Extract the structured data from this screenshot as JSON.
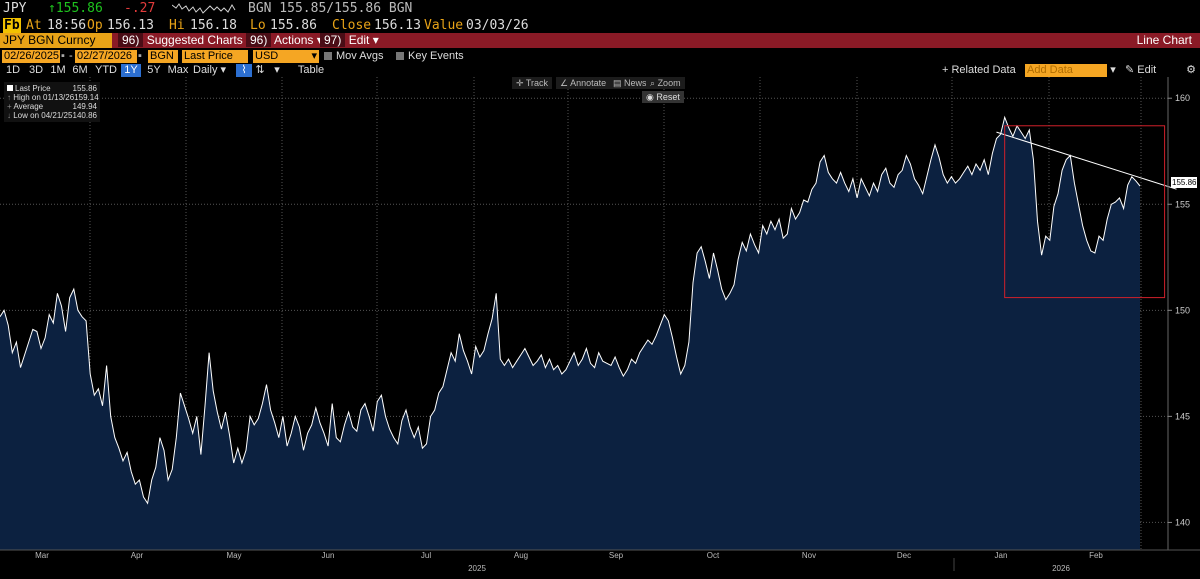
{
  "quote": {
    "ticker": "JPY",
    "last": "↑155.86",
    "change": "-.27",
    "bid_ask": "BGN 155.85/155.86 BGN",
    "fkey": "Fb",
    "at_label": "At",
    "at_time": "18:56",
    "op_label": "Op",
    "op": "156.13",
    "hi_label": "Hi",
    "hi": "156.18",
    "lo_label": "Lo",
    "lo": "155.86",
    "close_label": "Close",
    "close": "156.13",
    "value_label": "Value",
    "value": "03/03/26"
  },
  "menubar": {
    "security": "JPY BGN Curncy",
    "suggested_num": "96)",
    "suggested": "Suggested Charts",
    "actions_num": "96)",
    "actions": "Actions",
    "edit_num": "97)",
    "edit": "Edit",
    "chart_type": "Line Chart"
  },
  "settings": {
    "start_date": "02/26/2025",
    "end_date": "02/27/2026",
    "source": "BGN",
    "field": "Last Price",
    "currency": "USD",
    "mov_avgs": "Mov Avgs",
    "key_events": "Key Events"
  },
  "range": {
    "buttons": [
      "1D",
      "3D",
      "1M",
      "6M",
      "YTD",
      "1Y",
      "5Y",
      "Max"
    ],
    "selected": "1Y",
    "period": "Daily",
    "table": "Table",
    "related": "+ Related Data",
    "add_data": "Add Data",
    "edit_chart": "Edit Chart"
  },
  "tools": {
    "track": "Track",
    "annotate": "Annotate",
    "news": "News",
    "zoom": "Zoom",
    "reset": "Reset"
  },
  "legend": {
    "title": "Last Price",
    "title_value": "155.86",
    "rows": [
      {
        "label": "High on 01/13/26",
        "value": "159.14"
      },
      {
        "label": "Average",
        "value": "149.94"
      },
      {
        "label": "Low on 04/21/25",
        "value": "140.86"
      }
    ]
  },
  "colors": {
    "line": "#ffffff",
    "fill": "#0c2140",
    "trend": "#ffffff",
    "box": "#d0202a",
    "grid": "#555555"
  },
  "chart_data": {
    "type": "area",
    "title": "",
    "ylim": [
      138.7,
      161.0
    ],
    "yticks": [
      "160",
      "155",
      "150",
      "145",
      "140"
    ],
    "months": [
      "Mar",
      "Apr",
      "May",
      "Jun",
      "Jul",
      "Aug",
      "Sep",
      "Oct",
      "Nov",
      "Dec",
      "Jan",
      "Feb"
    ],
    "years": [
      "2025",
      "2026"
    ],
    "last_price_label": "155.86",
    "series": [
      {
        "values": [
          149.7,
          150.0,
          149.3,
          148.0,
          148.5,
          147.3,
          147.9,
          148.5,
          149.1,
          149.0,
          148.2,
          148.7,
          149.8,
          149.4,
          150.8,
          150.2,
          149.0,
          150.6,
          151.0,
          150.0,
          149.7,
          149.5,
          147.0,
          146.0,
          146.3,
          145.5,
          147.4,
          145.0,
          144.0,
          143.5,
          142.9,
          143.3,
          142.4,
          141.8,
          142.0,
          141.2,
          140.9,
          142.0,
          142.6,
          144.0,
          143.4,
          142.0,
          142.5,
          144.0,
          146.1,
          145.5,
          144.9,
          144.2,
          145.0,
          143.2,
          145.5,
          148.0,
          146.2,
          145.2,
          144.4,
          145.2,
          144.1,
          142.8,
          143.5,
          142.8,
          143.4,
          145.0,
          144.6,
          144.9,
          145.6,
          146.5,
          145.3,
          144.7,
          144.0,
          145.0,
          143.6,
          144.2,
          145.0,
          144.5,
          143.4,
          144.2,
          144.6,
          145.4,
          144.7,
          144.2,
          143.6,
          145.6,
          144.0,
          143.8,
          144.6,
          145.2,
          144.5,
          144.3,
          145.3,
          145.6,
          145.0,
          144.3,
          145.7,
          146.0,
          145.0,
          144.4,
          144.0,
          143.7,
          144.8,
          145.3,
          144.5,
          144.0,
          144.5,
          143.5,
          143.7,
          145.0,
          145.3,
          146.1,
          146.4,
          147.2,
          148.0,
          147.6,
          148.9,
          148.1,
          147.6,
          147.0,
          148.3,
          147.8,
          148.1,
          148.9,
          149.6,
          150.8,
          147.7,
          147.4,
          147.7,
          147.3,
          147.6,
          147.9,
          148.2,
          147.8,
          147.4,
          147.6,
          147.9,
          147.3,
          147.7,
          147.2,
          147.4,
          147.0,
          147.2,
          147.6,
          148.0,
          147.4,
          147.7,
          148.2,
          147.5,
          147.3,
          148.0,
          147.6,
          147.5,
          147.4,
          147.8,
          147.3,
          146.9,
          147.2,
          147.7,
          147.5,
          148.0,
          148.3,
          148.6,
          148.4,
          148.8,
          149.3,
          149.8,
          149.5,
          148.7,
          147.8,
          147.0,
          147.4,
          148.5,
          151.3,
          152.7,
          153.0,
          152.3,
          151.5,
          152.7,
          151.9,
          151.0,
          150.5,
          150.8,
          151.2,
          152.4,
          153.2,
          152.8,
          153.6,
          153.1,
          152.7,
          154.0,
          153.6,
          154.2,
          153.8,
          154.3,
          153.4,
          153.6,
          154.8,
          154.3,
          154.6,
          155.2,
          155.1,
          155.7,
          156.0,
          157.0,
          157.3,
          156.5,
          156.2,
          156.0,
          156.5,
          156.0,
          155.6,
          156.2,
          155.3,
          156.2,
          155.8,
          155.4,
          156.0,
          155.6,
          156.4,
          156.7,
          156.0,
          155.8,
          156.4,
          156.6,
          157.3,
          156.9,
          156.2,
          155.9,
          155.5,
          156.3,
          157.1,
          157.8,
          157.2,
          156.4,
          156.0,
          156.3,
          156.0,
          156.2,
          156.5,
          156.8,
          156.4,
          156.9,
          156.6,
          157.1,
          156.4,
          157.4,
          158.1,
          158.3,
          159.1,
          158.6,
          158.2,
          158.7,
          158.4,
          158.1,
          158.5,
          157.1,
          154.2,
          152.6,
          153.5,
          153.3,
          154.9,
          155.5,
          156.6,
          157.1,
          157.3,
          156.0,
          155.0,
          154.0,
          153.3,
          152.8,
          152.7,
          153.5,
          153.3,
          154.3,
          155.0,
          155.1,
          155.3,
          154.8,
          155.9,
          156.3,
          156.1,
          155.86
        ]
      }
    ],
    "trendline": {
      "from_index": 243,
      "from_value": 158.4,
      "to_index": 283,
      "to_value": 155.95
    },
    "highlight_box": {
      "from_index": 245,
      "to_index": 284,
      "y_low": 150.6,
      "y_high": 158.7
    }
  }
}
